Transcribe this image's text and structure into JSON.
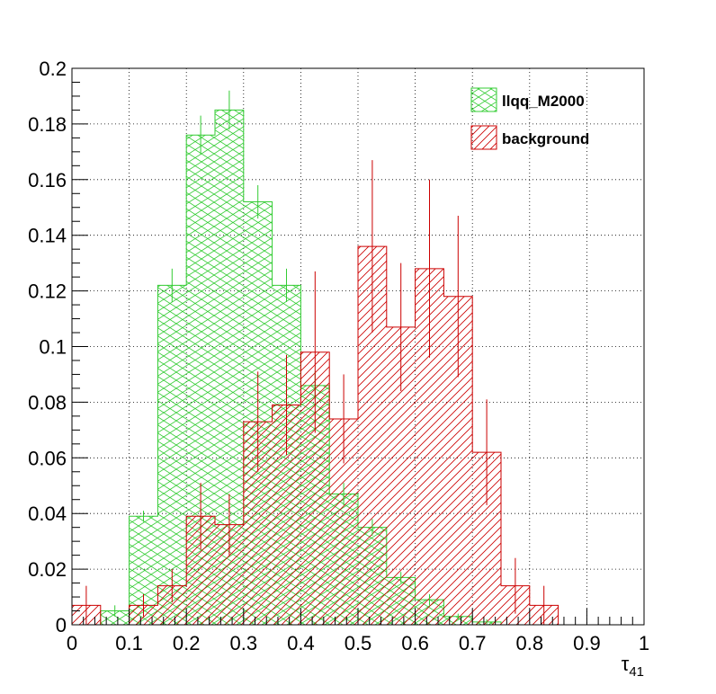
{
  "chart_data": {
    "type": "bar",
    "xlabel": "τ",
    "xlabel_sub": "41",
    "ylabel": "",
    "xlim": [
      0,
      1
    ],
    "ylim": [
      0,
      0.2
    ],
    "grid": true,
    "legend_position": "top-right",
    "bin_edges": [
      0,
      0.05,
      0.1,
      0.15,
      0.2,
      0.25,
      0.3,
      0.35,
      0.4,
      0.45,
      0.5,
      0.55,
      0.6,
      0.65,
      0.7,
      0.75,
      0.8,
      0.85,
      0.9,
      0.95,
      1.0
    ],
    "x_ticks": [
      "0",
      "0.1",
      "0.2",
      "0.3",
      "0.4",
      "0.5",
      "0.6",
      "0.7",
      "0.8",
      "0.9",
      "1"
    ],
    "y_ticks": [
      "0",
      "0.02",
      "0.04",
      "0.06",
      "0.08",
      "0.1",
      "0.12",
      "0.14",
      "0.16",
      "0.18",
      "0.2"
    ],
    "series": [
      {
        "name": "llqq_M2000",
        "color": "#33cc33",
        "hatch": "cross",
        "bins": [
          {
            "v": 0.0,
            "e": 0
          },
          {
            "v": 0.005,
            "e": 0.002
          },
          {
            "v": 0.039,
            "e": 0.002
          },
          {
            "v": 0.122,
            "e": 0.006
          },
          {
            "v": 0.176,
            "e": 0.007
          },
          {
            "v": 0.185,
            "e": 0.007
          },
          {
            "v": 0.152,
            "e": 0.006
          },
          {
            "v": 0.122,
            "e": 0.006
          },
          {
            "v": 0.086,
            "e": 0.005
          },
          {
            "v": 0.047,
            "e": 0.004
          },
          {
            "v": 0.035,
            "e": 0.003
          },
          {
            "v": 0.017,
            "e": 0.002
          },
          {
            "v": 0.009,
            "e": 0.002
          },
          {
            "v": 0.003,
            "e": 0.001
          },
          {
            "v": 0.001,
            "e": 0.001
          },
          {
            "v": 0.0,
            "e": 0
          },
          {
            "v": 0.0,
            "e": 0
          },
          {
            "v": 0.0,
            "e": 0
          },
          {
            "v": 0.0,
            "e": 0
          },
          {
            "v": 0.0,
            "e": 0
          }
        ]
      },
      {
        "name": "background",
        "color": "#cc0000",
        "hatch": "diagonal",
        "bins": [
          {
            "v": 0.007,
            "e": 0.007
          },
          {
            "v": 0.0,
            "e": 0.0
          },
          {
            "v": 0.007,
            "e": 0.004
          },
          {
            "v": 0.014,
            "e": 0.006
          },
          {
            "v": 0.039,
            "e": 0.012
          },
          {
            "v": 0.036,
            "e": 0.011
          },
          {
            "v": 0.073,
            "e": 0.018
          },
          {
            "v": 0.079,
            "e": 0.018
          },
          {
            "v": 0.098,
            "e": 0.029
          },
          {
            "v": 0.074,
            "e": 0.016
          },
          {
            "v": 0.136,
            "e": 0.031
          },
          {
            "v": 0.107,
            "e": 0.023
          },
          {
            "v": 0.128,
            "e": 0.032
          },
          {
            "v": 0.118,
            "e": 0.029
          },
          {
            "v": 0.062,
            "e": 0.019
          },
          {
            "v": 0.014,
            "e": 0.01
          },
          {
            "v": 0.007,
            "e": 0.007
          },
          {
            "v": 0.0,
            "e": 0.0
          },
          {
            "v": 0.0,
            "e": 0.0
          },
          {
            "v": 0.0,
            "e": 0.0
          }
        ]
      }
    ]
  }
}
